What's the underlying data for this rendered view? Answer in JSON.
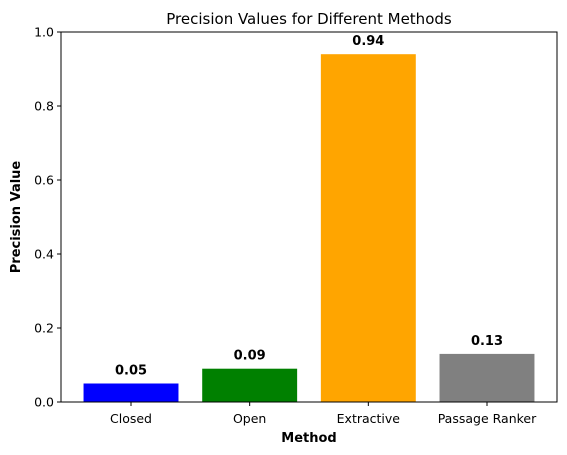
{
  "chart_data": {
    "type": "bar",
    "title": "Precision Values for Different Methods",
    "xlabel": "Method",
    "ylabel": "Precision Value",
    "categories": [
      "Closed",
      "Open",
      "Extractive",
      "Passage Ranker"
    ],
    "values": [
      0.05,
      0.09,
      0.94,
      0.13
    ],
    "value_labels": [
      "0.05",
      "0.09",
      "0.94",
      "0.13"
    ],
    "colors": [
      "#0000ff",
      "#008000",
      "#ffa500",
      "#808080"
    ],
    "ylim": [
      0,
      1.0
    ],
    "yticks": [
      0.0,
      0.2,
      0.4,
      0.6,
      0.8,
      1.0
    ],
    "ytick_labels": [
      "0.0",
      "0.2",
      "0.4",
      "0.6",
      "0.8",
      "1.0"
    ],
    "grid": false,
    "legend": "none"
  }
}
